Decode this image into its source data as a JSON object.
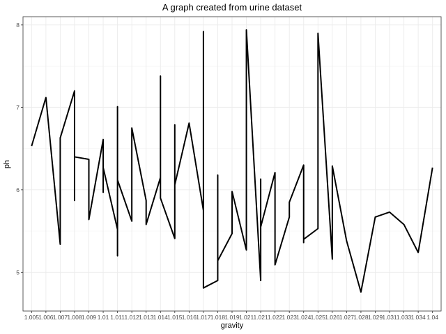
{
  "chart_data": {
    "type": "line",
    "title": "A graph created from urine dataset",
    "xlabel": "gravity",
    "ylabel": "ph",
    "categories": [
      "1.005",
      "1.006",
      "1.007",
      "1.008",
      "1.009",
      "1.01",
      "1.011",
      "1.012",
      "1.013",
      "1.014",
      "1.015",
      "1.016",
      "1.017",
      "1.018",
      "1.019",
      "1.021",
      "1.021",
      "1.022",
      "1.023",
      "1.024",
      "1.025",
      "1.026",
      "1.027",
      "1.028",
      "1.029",
      "1.031",
      "1.033",
      "1.034",
      "1.04"
    ],
    "ylim": [
      4.53,
      8.1
    ],
    "yticks": [
      5,
      6,
      7,
      8
    ],
    "grid": true,
    "line_color": "#000000",
    "series": [
      {
        "points": [
          [
            0,
            6.53
          ],
          [
            1,
            7.12
          ],
          [
            2,
            5.34
          ],
          [
            2,
            6.63
          ],
          [
            3,
            7.2
          ],
          [
            3,
            5.87
          ],
          [
            3,
            6.4
          ],
          [
            4,
            6.37
          ],
          [
            4,
            5.64
          ],
          [
            5,
            6.61
          ],
          [
            5,
            5.97
          ],
          [
            5,
            6.27
          ],
          [
            6,
            5.52
          ],
          [
            6,
            7.01
          ],
          [
            6,
            5.2
          ],
          [
            6,
            6.12
          ],
          [
            7,
            5.62
          ],
          [
            7,
            6.75
          ],
          [
            8,
            5.87
          ],
          [
            8,
            5.58
          ],
          [
            9,
            6.15
          ],
          [
            9,
            7.38
          ],
          [
            9,
            5.9
          ],
          [
            10,
            5.41
          ],
          [
            10,
            6.79
          ],
          [
            10,
            6.06
          ],
          [
            11,
            6.81
          ],
          [
            12,
            5.75
          ],
          [
            12,
            7.92
          ],
          [
            12,
            4.81
          ],
          [
            13,
            4.9
          ],
          [
            13,
            6.18
          ],
          [
            13,
            5.14
          ],
          [
            14,
            5.47
          ],
          [
            14,
            5.98
          ],
          [
            15,
            5.27
          ],
          [
            15,
            7.94
          ],
          [
            16,
            4.9
          ],
          [
            16,
            6.13
          ],
          [
            16,
            5.55
          ],
          [
            17,
            6.21
          ],
          [
            17,
            5.09
          ],
          [
            18,
            5.67
          ],
          [
            18,
            5.85
          ],
          [
            19,
            6.3
          ],
          [
            19,
            5.36
          ],
          [
            19,
            5.4
          ],
          [
            20,
            5.53
          ],
          [
            20,
            7.9
          ],
          [
            21,
            5.16
          ],
          [
            21,
            6.29
          ],
          [
            22,
            5.38
          ],
          [
            23,
            4.76
          ],
          [
            24,
            5.67
          ],
          [
            25,
            5.73
          ],
          [
            26,
            5.58
          ],
          [
            27,
            5.24
          ],
          [
            28,
            6.27
          ]
        ]
      }
    ]
  }
}
